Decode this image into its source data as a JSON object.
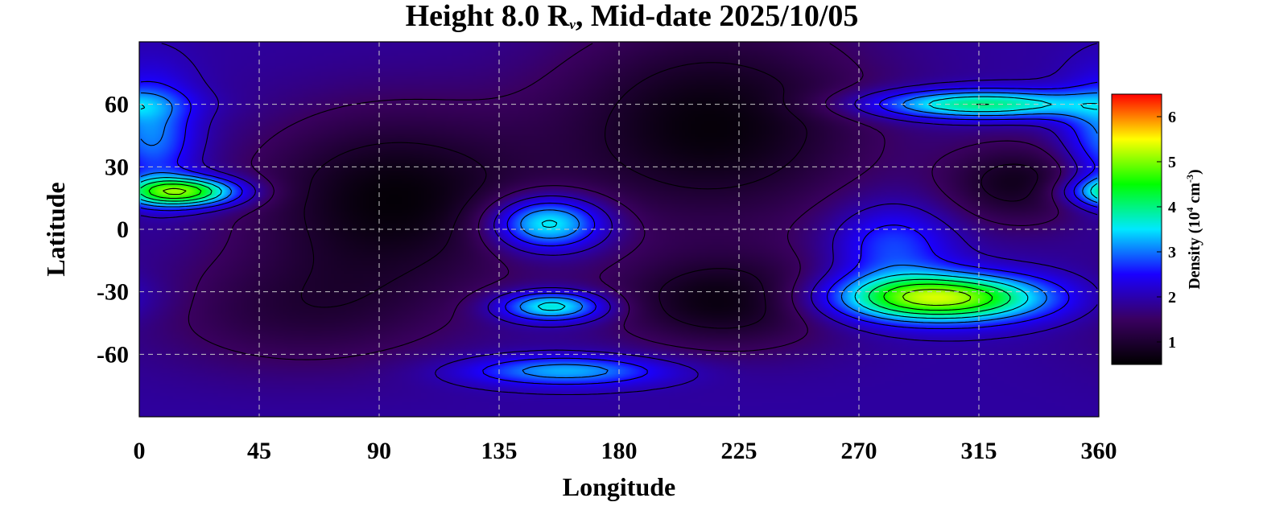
{
  "chart_data": {
    "type": "heatmap",
    "title": {
      "prefix": "Height 8.0 R",
      "subscript": "ν",
      "suffix": ", Mid-date 2025/10/05"
    },
    "xlabel": "Longitude",
    "ylabel": "Latitude",
    "xlim": [
      0,
      360
    ],
    "ylim": [
      -90,
      90
    ],
    "xticks": [
      0,
      45,
      90,
      135,
      180,
      225,
      270,
      315,
      360
    ],
    "yticks": [
      60,
      30,
      0,
      -30,
      -60
    ],
    "ytick_labels": [
      "60",
      "30",
      "0",
      "-30",
      "-60"
    ],
    "grid": true,
    "background_density": 1.9,
    "features": [
      {
        "lon": 15,
        "lat": 18,
        "value": 5.0,
        "sigma_lon": 16,
        "sigma_lat": 5
      },
      {
        "lon": 4,
        "lat": 45,
        "value": 3.2,
        "sigma_lon": 12,
        "sigma_lat": 20
      },
      {
        "lon": 153,
        "lat": 3,
        "value": 4.1,
        "sigma_lon": 15,
        "sigma_lat": 9
      },
      {
        "lon": 155,
        "lat": -37,
        "value": 3.9,
        "sigma_lon": 14,
        "sigma_lat": 5
      },
      {
        "lon": 160,
        "lat": -68,
        "value": 3.3,
        "sigma_lon": 26,
        "sigma_lat": 5
      },
      {
        "lon": 300,
        "lat": -33,
        "value": 5.3,
        "sigma_lon": 28,
        "sigma_lat": 8
      },
      {
        "lon": 315,
        "lat": 60,
        "value": 4.1,
        "sigma_lon": 30,
        "sigma_lat": 5
      },
      {
        "lon": 282,
        "lat": -8,
        "value": 2.9,
        "sigma_lon": 16,
        "sigma_lat": 14
      },
      {
        "lon": 95,
        "lat": 15,
        "value": 0.6,
        "sigma_lon": 38,
        "sigma_lat": 30
      },
      {
        "lon": 215,
        "lat": 50,
        "value": 0.6,
        "sigma_lon": 42,
        "sigma_lat": 35
      },
      {
        "lon": 220,
        "lat": -35,
        "value": 0.7,
        "sigma_lon": 30,
        "sigma_lat": 16
      },
      {
        "lon": 330,
        "lat": 22,
        "value": 0.8,
        "sigma_lon": 20,
        "sigma_lat": 14
      },
      {
        "lon": 60,
        "lat": -40,
        "value": 1.2,
        "sigma_lon": 40,
        "sigma_lat": 20
      }
    ],
    "colorbar": {
      "label_prefix": "Density (10",
      "label_exponent": "4",
      "label_unit": " cm",
      "label_unit_exponent": "-3",
      "label_suffix": ")",
      "range": [
        0.5,
        6.5
      ],
      "ticks": [
        1,
        2,
        3,
        4,
        5,
        6
      ],
      "tick_labels": [
        "1",
        "2",
        "3",
        "4",
        "5",
        "6"
      ],
      "colormap": [
        "#000000",
        "#3a0060",
        "#1a00ff",
        "#00e8ff",
        "#00ff00",
        "#ffff00",
        "#ff0000"
      ]
    },
    "contour_levels": [
      1.0,
      1.5,
      2.0,
      2.5,
      3.0,
      3.5,
      4.0,
      4.5,
      5.0
    ]
  }
}
